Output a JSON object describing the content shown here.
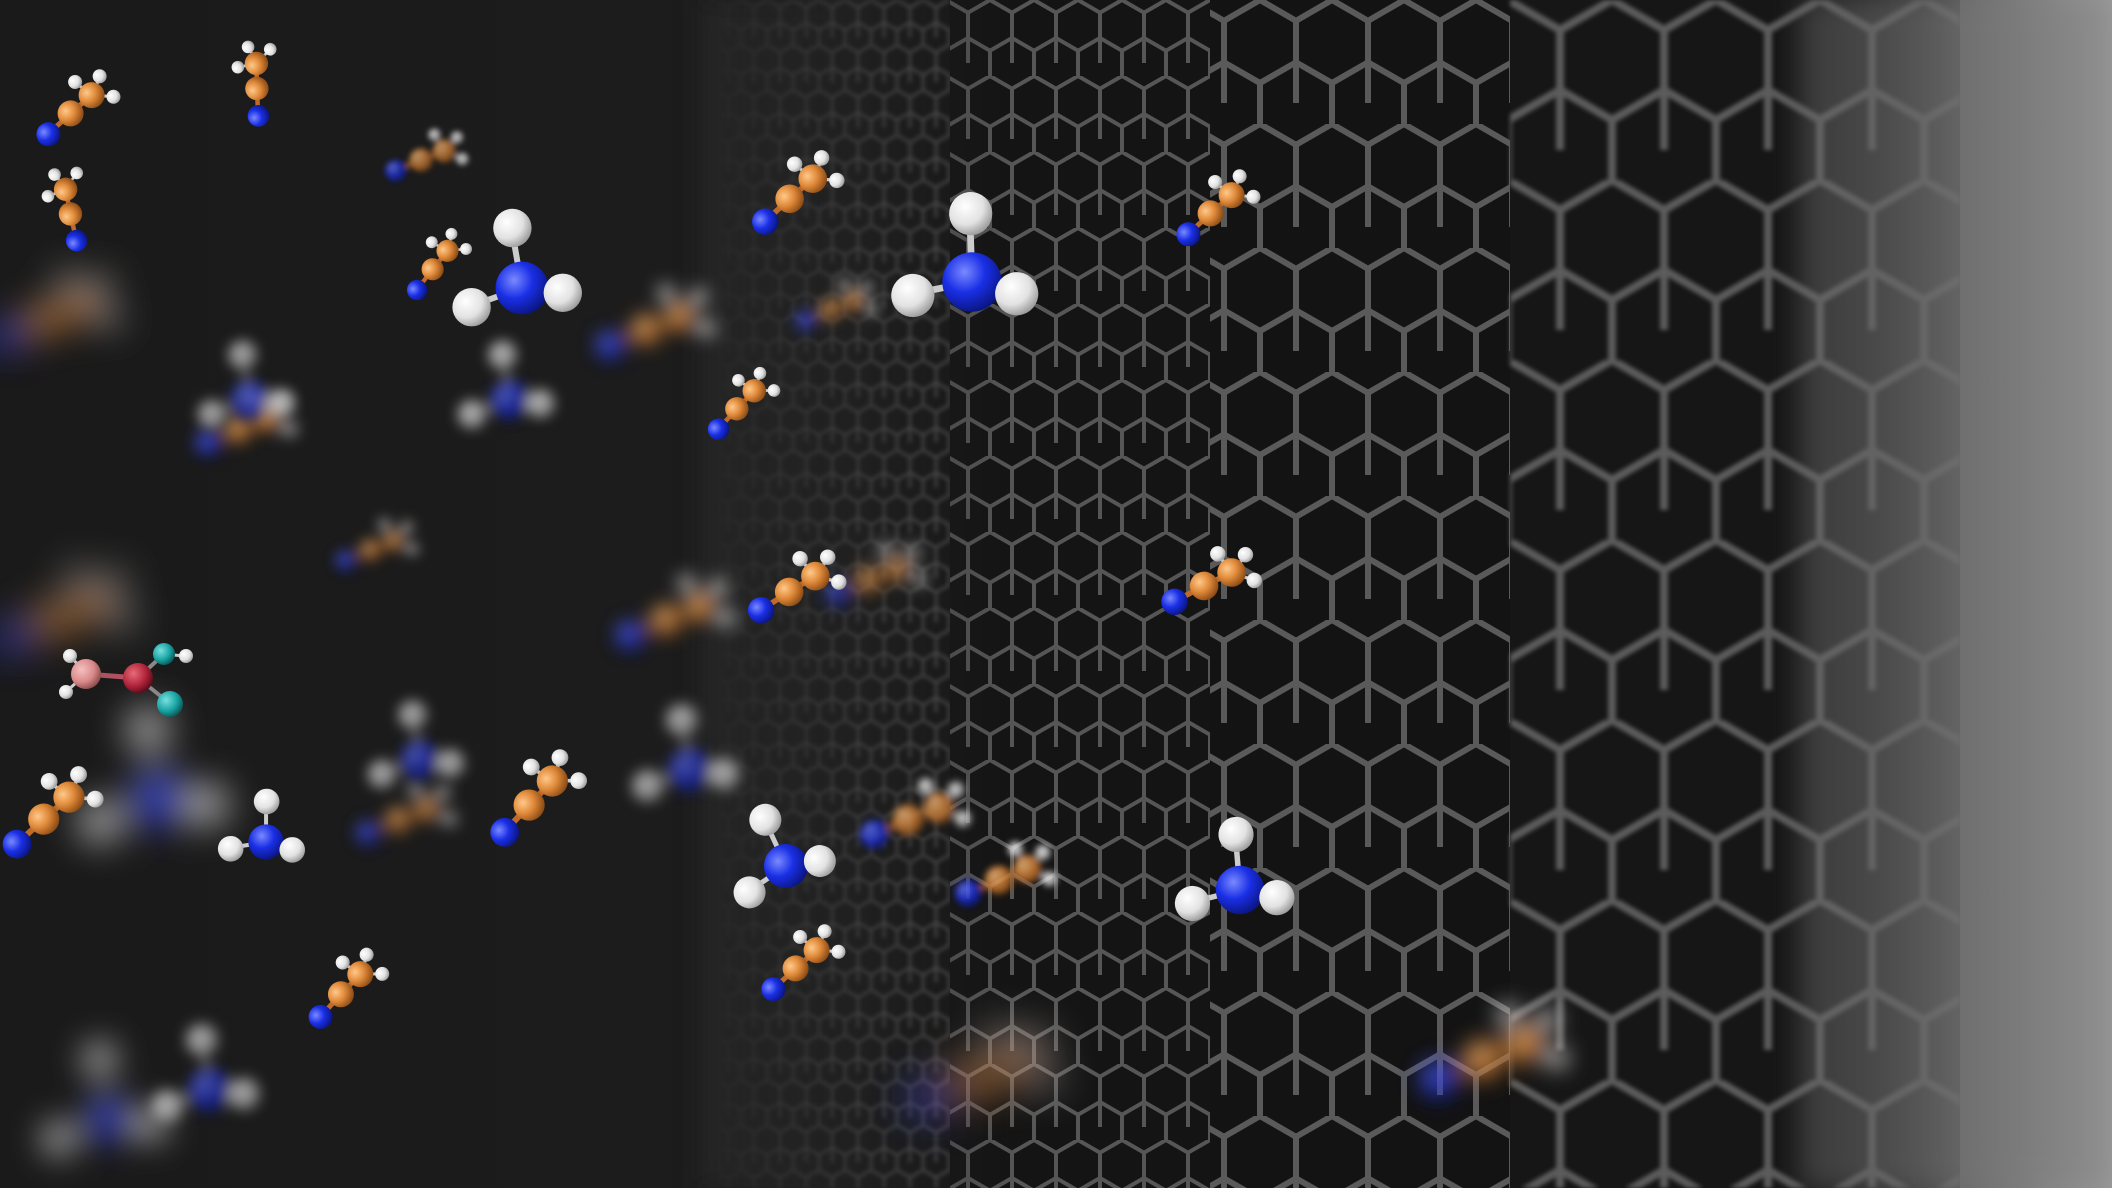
{
  "image": {
    "kind": "3d-render",
    "colors": {
      "background": "#1a1a1a",
      "lattice": "#4a4a4a",
      "lattice_edge_glow": "#6a6a6a",
      "carbon": "#e08a3a",
      "hydrogen": "#eeeeee",
      "nitrogen": "#1a2fe6",
      "oxygen": "#b0243a",
      "teal_atom": "#1aa3a3",
      "pink_atom": "#d98a8a"
    },
    "molecules": [
      {
        "type": "acetonitrile"
      },
      {
        "type": "acetonitrile"
      },
      {
        "type": "acetonitrile"
      },
      {
        "type": "acetonitrile"
      },
      {
        "type": "acetonitrile"
      },
      {
        "type": "acetonitrile"
      },
      {
        "type": "acetonitrile"
      },
      {
        "type": "acetonitrile"
      },
      {
        "type": "acetonitrile"
      },
      {
        "type": "acetonitrile"
      },
      {
        "type": "acetonitrile"
      },
      {
        "type": "acetonitrile"
      },
      {
        "type": "acetonitrile"
      },
      {
        "type": "ammonia"
      },
      {
        "type": "ammonia"
      },
      {
        "type": "ammonia"
      },
      {
        "type": "ammonia"
      },
      {
        "type": "ammonia"
      },
      {
        "type": "methanol"
      }
    ]
  }
}
